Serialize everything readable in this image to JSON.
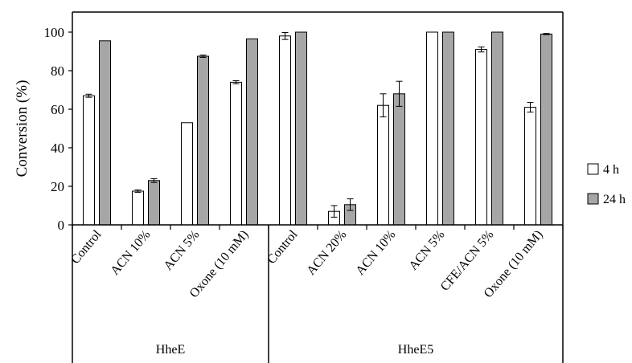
{
  "chart_data": {
    "type": "bar",
    "ylabel": "Conversion (%)",
    "ylim": [
      0,
      100
    ],
    "yticks": [
      0,
      20,
      40,
      60,
      80,
      100
    ],
    "error_bars": true,
    "legend_position": "right",
    "series": [
      {
        "name": "4 h",
        "color": "#ffffff",
        "values": [
          67,
          17.5,
          53,
          74,
          98,
          7,
          62,
          100,
          91,
          61
        ],
        "errors": [
          0.8,
          0.6,
          0,
          0.8,
          1.8,
          3,
          6,
          0,
          1.3,
          2.5
        ]
      },
      {
        "name": "24 h",
        "color": "#a6a6a6",
        "values": [
          95.5,
          23,
          87.5,
          96.5,
          100,
          10.5,
          68,
          100,
          100,
          99
        ],
        "errors": [
          0,
          1,
          0.6,
          0,
          0,
          3,
          6.5,
          0,
          0,
          0.3
        ]
      }
    ],
    "categories": [
      "Control",
      "ACN 10%",
      "ACN 5%",
      "Oxone (10 mM)",
      "Control",
      "ACN 20%",
      "ACN 10%",
      "ACN 5%",
      "CFE/ACN 5%",
      "Oxone (10 mM)"
    ],
    "groups": [
      {
        "label": "HheE",
        "count": 4
      },
      {
        "label": "HheE5",
        "count": 6
      }
    ]
  }
}
